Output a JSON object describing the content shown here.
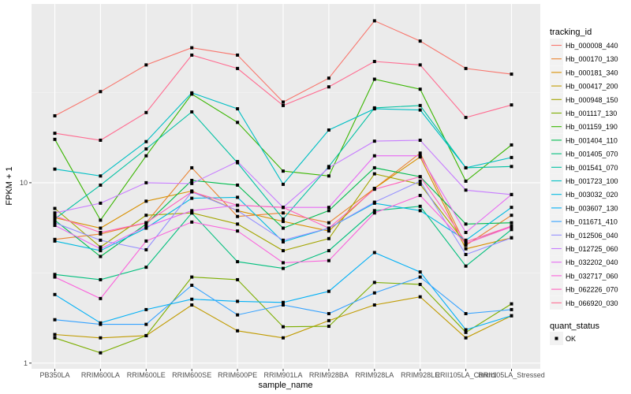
{
  "chart_data": {
    "type": "line",
    "xlabel": "sample_name",
    "ylabel": "FPKM + 1",
    "y_scale": "log10",
    "ylim": [
      0.93,
      98
    ],
    "y_ticks": [
      "1",
      "10"
    ],
    "y_tick_values": [
      1,
      10
    ],
    "grid": true,
    "legend_position": "right",
    "categories": [
      "PB350LA",
      "RRIM600LA",
      "RRIM600LE",
      "RRIM600SE",
      "RRIM600PE",
      "RRIM901LA",
      "RRIM928BA",
      "RRIM928LA",
      "RRIM928LE",
      "RRII105LA_Control",
      "RRII105LA_Stressed"
    ],
    "legend_title": "tracking_id",
    "series": [
      {
        "name": "Hb_000008_440",
        "color": "#F8766D",
        "values": [
          23.5,
          32,
          45,
          56,
          51,
          28,
          38,
          79,
          61,
          43,
          40
        ]
      },
      {
        "name": "Hb_000170_130",
        "color": "#EA8331",
        "values": [
          4.85,
          5.2,
          6.0,
          12.1,
          6.5,
          6.8,
          6.0,
          9.3,
          14.6,
          4.5,
          6.6
        ]
      },
      {
        "name": "Hb_000181_340",
        "color": "#D89000",
        "values": [
          6.4,
          5.6,
          7.9,
          9.0,
          7.0,
          6.1,
          5.4,
          9.3,
          13.9,
          4.3,
          4.95
        ]
      },
      {
        "name": "Hb_000417_200",
        "color": "#C09B00",
        "values": [
          1.44,
          1.38,
          1.42,
          2.1,
          1.51,
          1.38,
          1.72,
          2.1,
          2.33,
          1.38,
          1.83
        ]
      },
      {
        "name": "Hb_000948_150",
        "color": "#A3A500",
        "values": [
          7.2,
          4.4,
          6.6,
          6.8,
          5.9,
          4.2,
          4.9,
          11.2,
          9.8,
          4.6,
          5.75
        ]
      },
      {
        "name": "Hb_001117_130",
        "color": "#7CAE00",
        "values": [
          1.38,
          1.14,
          1.42,
          3.0,
          2.9,
          1.59,
          1.6,
          2.8,
          2.73,
          1.48,
          2.13
        ]
      },
      {
        "name": "Hb_001159_190",
        "color": "#39B600",
        "values": [
          17.4,
          6.2,
          14.1,
          31,
          21.6,
          11.6,
          10.9,
          37.5,
          33,
          10.2,
          16.2
        ]
      },
      {
        "name": "Hb_001404_110",
        "color": "#00BB4E",
        "values": [
          6.2,
          3.9,
          5.9,
          10.3,
          9.7,
          5.6,
          7.0,
          12.1,
          10.8,
          5.9,
          6.0
        ]
      },
      {
        "name": "Hb_001405_070",
        "color": "#00BF7D",
        "values": [
          3.1,
          2.9,
          3.4,
          6.8,
          3.65,
          3.35,
          4.2,
          7.0,
          7.4,
          3.45,
          5.5
        ]
      },
      {
        "name": "Hb_001541_070",
        "color": "#00C1A3",
        "values": [
          6.3,
          9.7,
          15.4,
          24.7,
          12.9,
          6.3,
          12.3,
          26,
          26.8,
          12.1,
          12.3
        ]
      },
      {
        "name": "Hb_001723_100",
        "color": "#00BFC4",
        "values": [
          11.9,
          10.9,
          16.9,
          31.5,
          25.7,
          9.8,
          19.6,
          25.7,
          25.3,
          12.1,
          13.8
        ]
      },
      {
        "name": "Hb_003032_020",
        "color": "#00BAE0",
        "values": [
          4.75,
          4.2,
          5.6,
          8.2,
          8.3,
          4.7,
          5.6,
          7.7,
          7.0,
          4.8,
          7.3
        ]
      },
      {
        "name": "Hb_003607_130",
        "color": "#00B0F6",
        "values": [
          2.4,
          1.67,
          1.98,
          2.26,
          2.2,
          2.17,
          2.5,
          4.1,
          3.2,
          1.53,
          1.83
        ]
      },
      {
        "name": "Hb_011671_410",
        "color": "#35A2FF",
        "values": [
          1.74,
          1.64,
          1.64,
          2.7,
          1.85,
          2.1,
          1.88,
          2.45,
          3.0,
          1.88,
          1.98
        ]
      },
      {
        "name": "Hb_012506_040",
        "color": "#9590FF",
        "values": [
          6.0,
          4.8,
          4.25,
          8.9,
          7.0,
          4.8,
          5.6,
          7.8,
          10.2,
          4.0,
          4.95
        ]
      },
      {
        "name": "Hb_012725_060",
        "color": "#C77CFF",
        "values": [
          6.8,
          7.7,
          10,
          9.9,
          13.1,
          7.3,
          12.1,
          17,
          17.2,
          9.1,
          8.6
        ]
      },
      {
        "name": "Hb_032202_040",
        "color": "#E76BF3",
        "values": [
          5.8,
          4.3,
          5.7,
          7.0,
          7.5,
          7.3,
          7.3,
          14.1,
          14.1,
          5.3,
          8.6
        ]
      },
      {
        "name": "Hb_032717_060",
        "color": "#FA62DB",
        "values": [
          3.0,
          2.28,
          4.75,
          6.05,
          5.4,
          3.6,
          3.7,
          6.8,
          8.5,
          4.6,
          5.7
        ]
      },
      {
        "name": "Hb_062226_070",
        "color": "#FF62BC",
        "values": [
          6.55,
          5.3,
          6.0,
          8.9,
          7.5,
          7.3,
          5.6,
          9.2,
          10.8,
          4.7,
          5.75
        ]
      },
      {
        "name": "Hb_066920_030",
        "color": "#FF6C91",
        "values": [
          18.8,
          17.2,
          24.5,
          51,
          43,
          26.8,
          34,
          47,
          45,
          23,
          27
        ]
      }
    ],
    "point_legend_title": "quant_status",
    "point_legend_label": "OK"
  }
}
